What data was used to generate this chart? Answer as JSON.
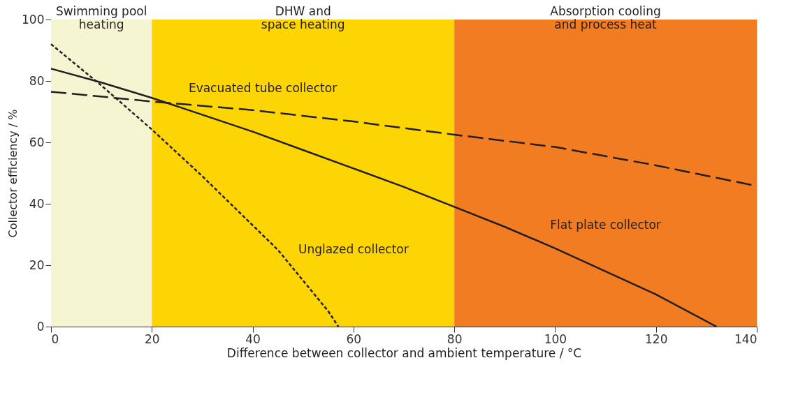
{
  "chart_data": {
    "type": "line",
    "xlabel": "Difference between collector and ambient temperature / °C",
    "ylabel": "Collector efficiency / %",
    "xlim": [
      0,
      140
    ],
    "xticks": [
      0,
      20,
      40,
      60,
      80,
      100,
      120,
      140
    ],
    "ylim": [
      0,
      100
    ],
    "yticks": [
      0,
      20,
      40,
      60,
      80,
      100
    ],
    "grid": false,
    "series": [
      {
        "name": "Evacuated tube collector",
        "color": "#231f20",
        "line_style": "dashed",
        "x": [
          0,
          20,
          40,
          60,
          80,
          100,
          120,
          140
        ],
        "values": [
          76.5,
          73.3,
          70.5,
          66.8,
          62.5,
          58.5,
          52.5,
          45.8
        ]
      },
      {
        "name": "Flat plate collector",
        "color": "#231f20",
        "line_style": "solid",
        "x": [
          0,
          10,
          20,
          30,
          40,
          50,
          60,
          70,
          80,
          90,
          100,
          110,
          120,
          132
        ],
        "values": [
          84,
          79.5,
          74.5,
          69,
          63.5,
          57.5,
          51.5,
          45.5,
          39,
          32.5,
          25.5,
          18,
          10.5,
          0
        ]
      },
      {
        "name": "Unglazed collector",
        "color": "#231f20",
        "line_style": "dotted",
        "x": [
          0,
          10,
          20,
          30,
          40,
          45,
          50,
          55,
          57
        ],
        "values": [
          92,
          78.5,
          64.2,
          49,
          33,
          25,
          15,
          5,
          0
        ]
      }
    ],
    "bands": [
      {
        "axis": "x",
        "from": 0,
        "to": 20,
        "label": "Swimming pool\nheating",
        "color": "#f5f5d2"
      },
      {
        "axis": "x",
        "from": 20,
        "to": 80,
        "label": "DHW and\nspace heating",
        "color": "#fdd404"
      },
      {
        "axis": "x",
        "from": 80,
        "to": 140,
        "label": "Absorption cooling\nand process heat",
        "color": "#f27c22"
      }
    ]
  }
}
